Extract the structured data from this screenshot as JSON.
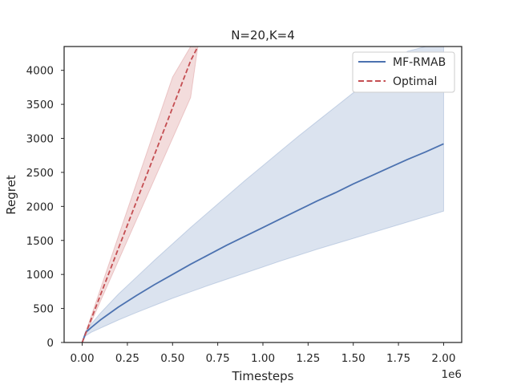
{
  "chart_data": {
    "type": "line",
    "title": "N=20,K=4",
    "xlabel": "Timesteps",
    "ylabel": "Regret",
    "x_offset_label": "1e6",
    "xlim": [
      -0.1,
      2.1
    ],
    "ylim": [
      0,
      4350
    ],
    "x_scale": 1000000,
    "xticks": [
      0.0,
      0.25,
      0.5,
      0.75,
      1.0,
      1.25,
      1.5,
      1.75,
      2.0
    ],
    "xtick_labels": [
      "0.00",
      "0.25",
      "0.50",
      "0.75",
      "1.00",
      "1.25",
      "1.50",
      "1.75",
      "2.00"
    ],
    "yticks": [
      0,
      500,
      1000,
      1500,
      2000,
      2500,
      3000,
      3500,
      4000
    ],
    "ytick_labels": [
      "0",
      "500",
      "1000",
      "1500",
      "2000",
      "2500",
      "3000",
      "3500",
      "4000"
    ],
    "grid": false,
    "legend_position": "top-right",
    "series": [
      {
        "name": "MF-RMAB",
        "color": "#4c72b0",
        "line_style": "solid",
        "x": [
          0.0,
          0.02,
          0.05,
          0.1,
          0.2,
          0.3,
          0.4,
          0.5,
          0.6,
          0.7,
          0.8,
          0.9,
          1.0,
          1.1,
          1.2,
          1.3,
          1.4,
          1.5,
          1.6,
          1.7,
          1.8,
          1.9,
          2.0
        ],
        "y": [
          0,
          150,
          220,
          330,
          520,
          690,
          850,
          1000,
          1150,
          1290,
          1430,
          1560,
          1690,
          1820,
          1950,
          2080,
          2200,
          2330,
          2450,
          2570,
          2690,
          2800,
          2920
        ],
        "lower": [
          0,
          100,
          150,
          210,
          330,
          440,
          545,
          650,
          745,
          840,
          930,
          1020,
          1110,
          1200,
          1285,
          1370,
          1450,
          1530,
          1610,
          1690,
          1770,
          1850,
          1930
        ],
        "upper": [
          0,
          170,
          270,
          430,
          710,
          960,
          1210,
          1450,
          1690,
          1920,
          2150,
          2380,
          2600,
          2820,
          3040,
          3250,
          3460,
          3670,
          3880,
          4080,
          4280,
          4350,
          4350
        ]
      },
      {
        "name": "Optimal",
        "color": "#c44e52",
        "line_style": "dashed",
        "x": [
          0.0,
          0.1,
          0.2,
          0.3,
          0.4,
          0.5,
          0.6,
          0.64
        ],
        "y": [
          0,
          690,
          1380,
          2070,
          2760,
          3450,
          4140,
          4350
        ],
        "lower": [
          0,
          600,
          1200,
          1800,
          2400,
          3000,
          3600,
          4350
        ],
        "upper": [
          0,
          780,
          1560,
          2340,
          3120,
          3900,
          4350,
          4350
        ]
      }
    ]
  }
}
